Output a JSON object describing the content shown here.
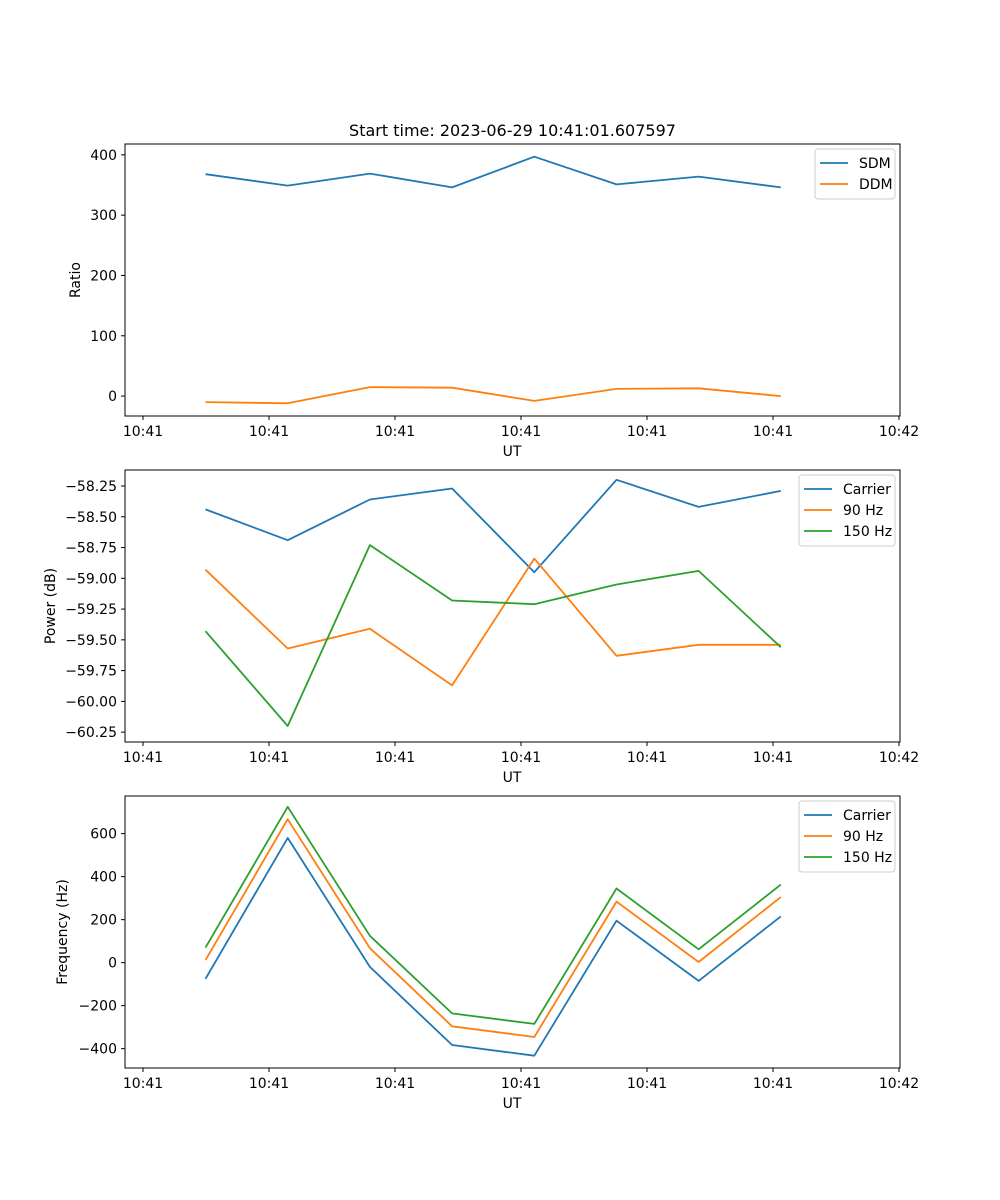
{
  "figure": {
    "title": "Start time: 2023-06-29 10:41:01.607597"
  },
  "chart_data": [
    {
      "type": "line",
      "title": "Start time: 2023-06-29 10:41:01.607597",
      "xlabel": "UT",
      "ylabel": "Ratio",
      "x_tick_labels": [
        "10:41",
        "10:41",
        "10:41",
        "10:41",
        "10:41",
        "10:41",
        "10:41"
      ],
      "x_last_tick_label": "10:42",
      "y_ticks": [
        0,
        100,
        200,
        300,
        400
      ],
      "y_tick_labels": [
        "0",
        "100",
        "200",
        "300",
        "400"
      ],
      "ylim": [
        -33,
        418
      ],
      "xlim": [
        -0.98,
        8.45
      ],
      "x": [
        0,
        1,
        2,
        3,
        4,
        5,
        6,
        7
      ],
      "legend": "upper right",
      "grid": false,
      "series": [
        {
          "name": "SDM",
          "color": "#1f77b4",
          "values": [
            368,
            349,
            369,
            346,
            397,
            351,
            364,
            346
          ]
        },
        {
          "name": "DDM",
          "color": "#ff7f0e",
          "values": [
            -10,
            -12,
            15,
            14,
            -8,
            12,
            13,
            0
          ]
        }
      ]
    },
    {
      "type": "line",
      "xlabel": "UT",
      "ylabel": "Power (dB)",
      "x_tick_labels": [
        "10:41",
        "10:41",
        "10:41",
        "10:41",
        "10:41",
        "10:41",
        "10:41"
      ],
      "x_last_tick_label": "10:42",
      "y_ticks": [
        -58.25,
        -58.5,
        -58.75,
        -59.0,
        -59.25,
        -59.5,
        -59.75,
        -60.0,
        -60.25
      ],
      "y_tick_labels": [
        "−58.25",
        "−58.50",
        "−58.75",
        "−59.00",
        "−59.25",
        "−59.50",
        "−59.75",
        "−60.00",
        "−60.25"
      ],
      "ylim": [
        -60.33,
        -58.12
      ],
      "xlim": [
        -0.98,
        8.45
      ],
      "x": [
        0,
        1,
        2,
        3,
        4,
        5,
        6,
        7
      ],
      "legend": "upper right",
      "grid": false,
      "series": [
        {
          "name": "Carrier",
          "color": "#1f77b4",
          "values": [
            -58.44,
            -58.69,
            -58.36,
            -58.27,
            -58.95,
            -58.2,
            -58.42,
            -58.29
          ]
        },
        {
          "name": "90 Hz",
          "color": "#ff7f0e",
          "values": [
            -58.93,
            -59.57,
            -59.41,
            -59.87,
            -58.84,
            -59.63,
            -59.54,
            -59.54
          ]
        },
        {
          "name": "150 Hz",
          "color": "#2ca02c",
          "values": [
            -59.43,
            -60.2,
            -58.73,
            -59.18,
            -59.21,
            -59.05,
            -58.94,
            -59.56
          ]
        }
      ]
    },
    {
      "type": "line",
      "xlabel": "UT",
      "ylabel": "Frequency (Hz)",
      "x_tick_labels": [
        "10:41",
        "10:41",
        "10:41",
        "10:41",
        "10:41",
        "10:41",
        "10:41"
      ],
      "x_last_tick_label": "10:42",
      "y_ticks": [
        -400,
        -200,
        0,
        200,
        400,
        600
      ],
      "y_tick_labels": [
        "−400",
        "−200",
        "0",
        "200",
        "400",
        "600"
      ],
      "ylim": [
        -490,
        775
      ],
      "xlim": [
        -0.98,
        8.45
      ],
      "x": [
        0,
        1,
        2,
        3,
        4,
        5,
        6,
        7
      ],
      "legend": "upper right",
      "grid": false,
      "series": [
        {
          "name": "Carrier",
          "color": "#1f77b4",
          "values": [
            -75,
            580,
            -20,
            -383,
            -433,
            195,
            -85,
            215
          ]
        },
        {
          "name": "90 Hz",
          "color": "#ff7f0e",
          "values": [
            12,
            667,
            67,
            -296,
            -346,
            284,
            3,
            305
          ]
        },
        {
          "name": "150 Hz",
          "color": "#2ca02c",
          "values": [
            70,
            725,
            125,
            -236,
            -285,
            345,
            62,
            363
          ]
        }
      ]
    }
  ]
}
